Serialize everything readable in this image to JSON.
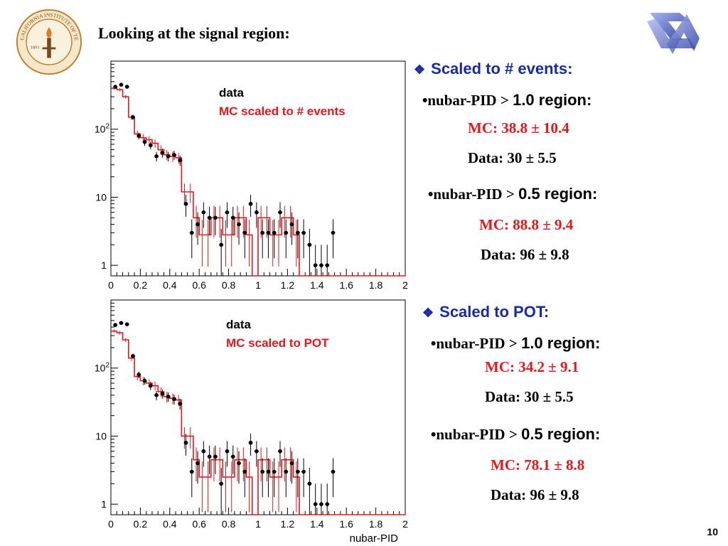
{
  "title": "Looking at the signal region:",
  "page_number": "10",
  "logos": {
    "left": "caltech-seal",
    "left_seal_text": "CALIFORNIA INSTITUTE OF TECHNOLOGY",
    "left_seal_year": "1891",
    "right": "ztorus-logo"
  },
  "colors": {
    "heading_blue": "#1a2aa7",
    "mc_red": "#e8161b",
    "data_black": "#000000"
  },
  "sections": [
    {
      "heading": "Scaled to # events:",
      "bullets": [
        {
          "bullet": "•",
          "label": "nubar-PID > ",
          "cut": "1.0 region:",
          "mc": "MC: 38.8 ± 10.4",
          "data": "Data: 30 ± 5.5"
        },
        {
          "bullet": "•",
          "label": "nubar-PID > ",
          "cut": "0.5 region:",
          "mc": "MC: 88.8 ± 9.4",
          "data": "Data: 96 ± 9.8"
        }
      ]
    },
    {
      "heading": "Scaled to POT:",
      "bullets": [
        {
          "bullet": "•",
          "label": "nubar-PID > ",
          "cut": "1.0 region:",
          "mc": "MC: 34.2 ± 9.1",
          "data": "Data: 30 ± 5.5"
        },
        {
          "bullet": "•",
          "label": "nubar-PID > ",
          "cut": "0.5 region:",
          "mc": "MC: 78.1 ± 8.8",
          "data": "Data: 96 ± 9.8"
        }
      ]
    }
  ],
  "chart_data": [
    {
      "type": "histogram",
      "log_y": true,
      "xlim": [
        0,
        2
      ],
      "ylim": [
        0.7,
        1000
      ],
      "xlabel": "",
      "ylabel": "",
      "x_ticks": [
        "0",
        "0.2",
        "0.4",
        "0.6",
        "0.8",
        "1",
        "1.2",
        "1.4",
        "1.6",
        "1.8",
        "2"
      ],
      "y_ticks": [
        {
          "value": 1,
          "label": "1",
          "sup": ""
        },
        {
          "value": 10,
          "label": "10",
          "sup": ""
        },
        {
          "value": 100,
          "label": "10",
          "sup": "2"
        }
      ],
      "legend": {
        "data": "data",
        "mc": "MC scaled to # events"
      },
      "bin_width": 0.04,
      "mc_values": [
        400,
        380,
        300,
        150,
        85,
        75,
        70,
        62,
        50,
        42,
        40,
        38,
        12,
        12,
        5,
        2.8,
        2.8,
        5,
        5,
        2.8,
        2.8,
        5,
        5,
        2.8,
        0.5,
        5,
        5,
        2.8,
        2.8,
        5,
        5,
        2.8,
        0.5,
        0.5,
        0.5,
        0.5,
        0.5,
        0.5,
        0.5,
        0.5,
        0.5,
        0.5,
        0.5,
        0.5,
        0.5,
        0.5,
        0.5,
        0.5,
        0.5,
        0.5
      ],
      "data_values": [
        420,
        450,
        420,
        150,
        80,
        65,
        58,
        40,
        45,
        40,
        42,
        35,
        8,
        3,
        4,
        6,
        5,
        5,
        2,
        6,
        5,
        4,
        3,
        8,
        6,
        3,
        3,
        3,
        6,
        3,
        4,
        3,
        3,
        2,
        1,
        1,
        1,
        3,
        0,
        0,
        0,
        0,
        0,
        0,
        0,
        0,
        0,
        0,
        0,
        0
      ]
    },
    {
      "type": "histogram",
      "log_y": true,
      "xlim": [
        0,
        2
      ],
      "ylim": [
        0.7,
        1000
      ],
      "xlabel": "nubar-PID",
      "ylabel": "",
      "x_ticks": [
        "0",
        "0.2",
        "0.4",
        "0.6",
        "0.8",
        "1",
        "1.2",
        "1.4",
        "1.6",
        "1.8",
        "2"
      ],
      "y_ticks": [
        {
          "value": 1,
          "label": "1",
          "sup": ""
        },
        {
          "value": 10,
          "label": "10",
          "sup": ""
        },
        {
          "value": 100,
          "label": "10",
          "sup": "2"
        }
      ],
      "legend": {
        "data": "data",
        "mc": "MC scaled to POT"
      },
      "bin_width": 0.04,
      "mc_values": [
        350,
        330,
        260,
        140,
        75,
        65,
        60,
        55,
        45,
        38,
        36,
        34,
        10,
        10,
        4.5,
        2.5,
        2.5,
        4.5,
        4.5,
        2.5,
        2.5,
        4.5,
        4.5,
        2.5,
        0.5,
        4.5,
        4.5,
        2.5,
        2.5,
        4.5,
        4.5,
        2.5,
        0.5,
        0.5,
        0.5,
        0.5,
        0.5,
        0.5,
        0.5,
        0.5,
        0.5,
        0.5,
        0.5,
        0.5,
        0.5,
        0.5,
        0.5,
        0.5,
        0.5,
        0.5
      ],
      "data_values": [
        430,
        460,
        440,
        150,
        80,
        65,
        55,
        40,
        42,
        38,
        35,
        30,
        8,
        3,
        4,
        6,
        5,
        5,
        2,
        6,
        5,
        4,
        3,
        8,
        6,
        3,
        3,
        3,
        6,
        3,
        4,
        3,
        3,
        2,
        1,
        1,
        1,
        3,
        0,
        0,
        0,
        0,
        0,
        0,
        0,
        0,
        0,
        0,
        0,
        0
      ]
    }
  ]
}
